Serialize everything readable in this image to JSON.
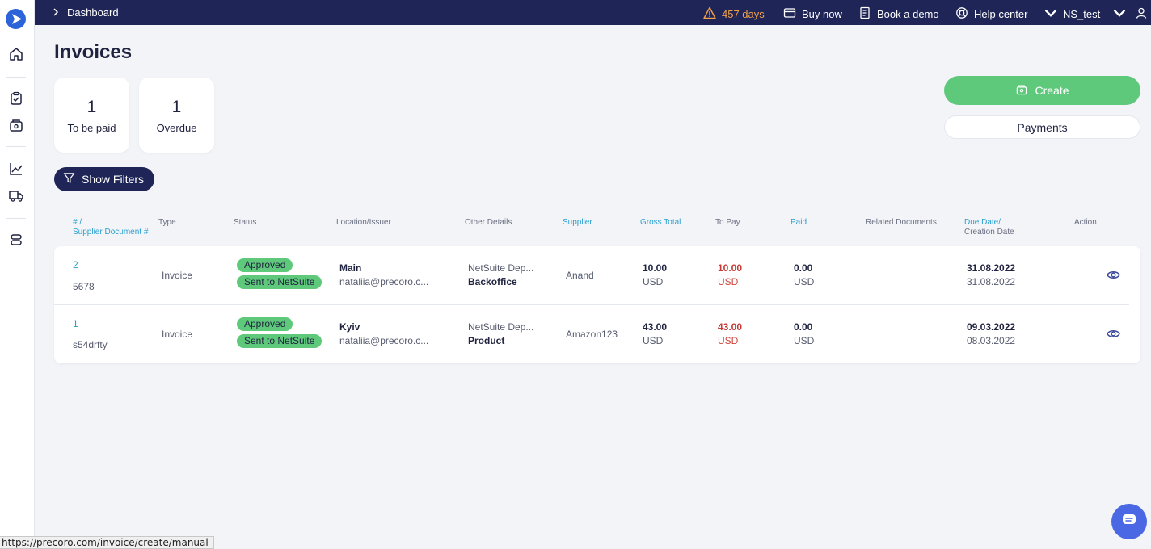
{
  "topbar": {
    "breadcrumb": "Dashboard",
    "trial": "457 days",
    "buy_now": "Buy now",
    "book_demo": "Book a demo",
    "help_center": "Help center",
    "company": "NS_test"
  },
  "page": {
    "title": "Invoices"
  },
  "stats": [
    {
      "value": "1",
      "label": "To be paid"
    },
    {
      "value": "1",
      "label": "Overdue"
    }
  ],
  "actions": {
    "create": "Create",
    "payments": "Payments",
    "filters": "Show Filters"
  },
  "table": {
    "headers": {
      "number_line1": "# /",
      "number_line2": "Supplier Document #",
      "type": "Type",
      "status": "Status",
      "location": "Location/Issuer",
      "other": "Other Details",
      "supplier": "Supplier",
      "gross": "Gross Total",
      "topay": "To Pay",
      "paid": "Paid",
      "related": "Related Documents",
      "due_line1": "Due Date/",
      "due_line2": "Creation Date",
      "action": "Action"
    },
    "rows": [
      {
        "number": "2",
        "doc": "5678",
        "type": "Invoice",
        "status1": "Approved",
        "status2": "Sent to NetSuite",
        "location": "Main",
        "issuer": "nataliia@precoro.c...",
        "other1": "NetSuite Dep...",
        "other2": "Backoffice",
        "supplier": "Anand",
        "gross": "10.00",
        "gross_cur": "USD",
        "topay": "10.00",
        "topay_cur": "USD",
        "paid": "0.00",
        "paid_cur": "USD",
        "due": "31.08.2022",
        "created": "31.08.2022"
      },
      {
        "number": "1",
        "doc": "s54drfty",
        "type": "Invoice",
        "status1": "Approved",
        "status2": "Sent to NetSuite",
        "location": "Kyiv",
        "issuer": "nataliia@precoro.c...",
        "other1": "NetSuite Dep...",
        "other2": "Product",
        "supplier": "Amazon123",
        "gross": "43.00",
        "gross_cur": "USD",
        "topay": "43.00",
        "topay_cur": "USD",
        "paid": "0.00",
        "paid_cur": "USD",
        "due": "09.03.2022",
        "created": "08.03.2022"
      }
    ]
  },
  "status_bar": {
    "url": "https://precoro.com/invoice/create/manual"
  },
  "colors": {
    "accent_green": "#5ec97a",
    "nav_dark": "#1f2557",
    "link_blue": "#2a9fd0",
    "due_red": "#d0453e",
    "chat_blue": "#4a67e4"
  },
  "icons": [
    "home-icon",
    "clipboard-icon",
    "invoice-icon",
    "chart-icon",
    "truck-icon",
    "database-icon",
    "warning-icon",
    "card-icon",
    "book-icon",
    "lifebuoy-icon",
    "user-icon",
    "filter-icon",
    "eye-icon",
    "chat-icon"
  ]
}
